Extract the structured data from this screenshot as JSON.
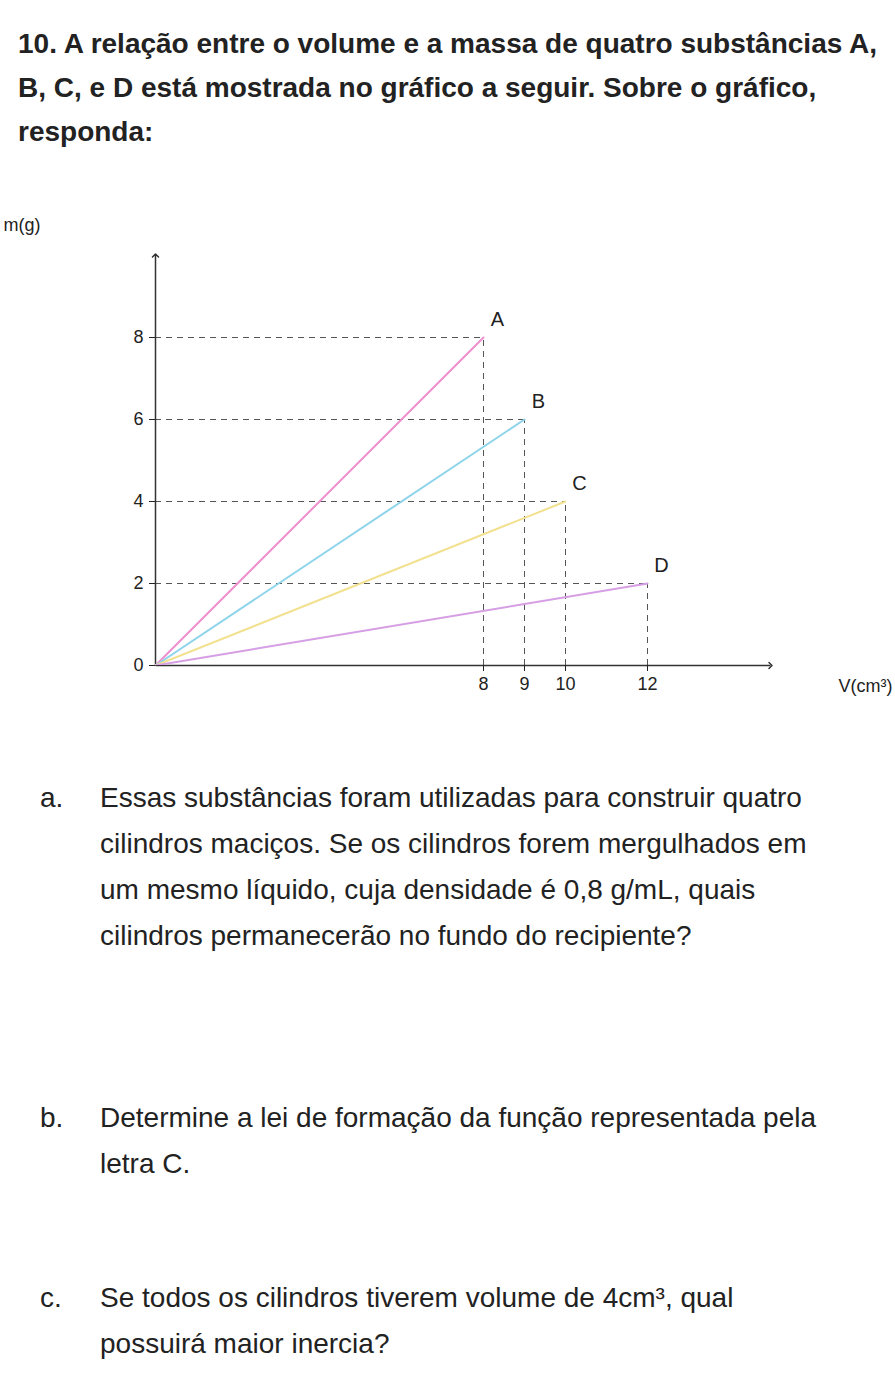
{
  "header": {
    "number": "10.",
    "title": "A relação entre o volume e a massa de quatro substâncias A, B, C, e D está mostrada no gráfico a seguir. Sobre o gráfico, responda:"
  },
  "chart_data": {
    "type": "line",
    "x_label": "V(cm³)",
    "y_label": "m(g)",
    "xlim": [
      0,
      15
    ],
    "ylim": [
      0,
      10
    ],
    "xticks": [
      8,
      9,
      10,
      12
    ],
    "yticks": [
      0,
      2,
      4,
      6,
      8
    ],
    "series": [
      {
        "name": "A",
        "color": "#ee8fcf",
        "x": [
          0,
          8
        ],
        "values": [
          0,
          8
        ]
      },
      {
        "name": "B",
        "color": "#8fd4ea",
        "x": [
          0,
          9
        ],
        "values": [
          0,
          6
        ]
      },
      {
        "name": "C",
        "color": "#f3e08e",
        "x": [
          0,
          10
        ],
        "values": [
          0,
          4
        ]
      },
      {
        "name": "D",
        "color": "#d69ee3",
        "x": [
          0,
          12
        ],
        "values": [
          0,
          2
        ]
      }
    ]
  },
  "questions": [
    {
      "label": "a.",
      "text": "Essas substâncias foram utilizadas para construir quatro cilindros maciços. Se os cilindros forem mergulhados em um mesmo líquido, cuja densidade é 0,8 g/mL, quais cilindros permanecerão no fundo do recipiente?"
    },
    {
      "label": "b.",
      "text": "Determine a lei de formação da função representada pela letra C."
    },
    {
      "label": "c.",
      "text": "Se todos os cilindros tiverem volume de 4cm³, qual possuirá maior inercia?"
    }
  ]
}
